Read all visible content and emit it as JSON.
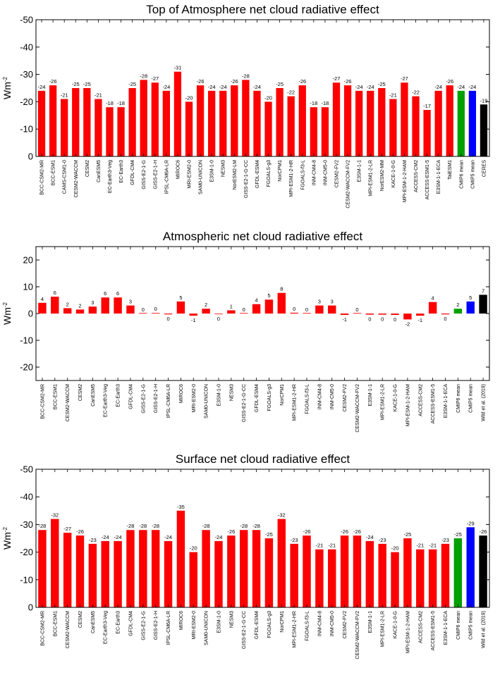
{
  "chart_data": [
    {
      "type": "bar",
      "title": "Top of Atmosphere net cloud radiative effect",
      "ylabel": "Wm",
      "ylabel_sup": "-2",
      "ylim": [
        -50,
        0
      ],
      "yticks": [
        0,
        -10,
        -20,
        -30,
        -40,
        -50
      ],
      "inverted": true,
      "categories": [
        "BCC-CSM2-MR",
        "BCC-ESM1",
        "CAMS-CSM1-0",
        "CESM2-WACCM",
        "CESM2",
        "CanESM5",
        "EC-Earth3-Veg",
        "EC-Earth3",
        "GFDL-CM4",
        "GISS-E2-1-G",
        "GISS-E2-1-H",
        "IPSL-CM6A-LR",
        "MIROC6",
        "MRI-ESM2-0",
        "SAM0-UNICON",
        "E3SM-1-0",
        "NESM3",
        "NorESM2-LM",
        "GISS-E2-1-G-CC",
        "GFDL-ESM4",
        "FGOALS-g3",
        "NorCPM1",
        "MPI-ESM1-2-HR",
        "FGOALS-f3-L",
        "INM-CM4-8",
        "INM-CM5-0",
        "CESM2-FV2",
        "CESM2-WACCM-FV2",
        "E3SM-1-1",
        "MPI-ESM1-2-LR",
        "NorESM2-MM",
        "KACE-1-0-G",
        "MPI-ESM-1-2-HAM",
        "ACCESS-CM2",
        "ACCESS-ESM1-5",
        "E3SM-1-1-ECA",
        "TaiESM1",
        "CMIP6 mean",
        "CMIP5 mean",
        "CERES"
      ],
      "values": [
        -24,
        -26,
        -21,
        -25,
        -25,
        -21,
        -18,
        -18,
        -25,
        -28,
        -27,
        -24,
        -31,
        -20,
        -26,
        -24,
        -24,
        -26,
        -28,
        -24,
        -20,
        -25,
        -22,
        -26,
        -18,
        -18,
        -27,
        -26,
        -24,
        -24,
        -25,
        -21,
        -27,
        -22,
        -17,
        -24,
        -26,
        -24,
        -24,
        -19
      ],
      "labels": [
        "-24",
        "-26",
        "-21",
        "-25",
        "-25",
        "-21",
        "-18",
        "-18",
        "-25",
        "-28",
        "-27",
        "-24",
        "-31",
        "-20",
        "-26",
        "-24",
        "-24",
        "-26",
        "-28",
        "-24",
        "-20",
        "-25",
        "-22",
        "-26",
        "-18",
        "-18",
        "-27",
        "-26",
        "-24",
        "-24",
        "-25",
        "-21",
        "-27",
        "-22",
        "-17",
        "-24",
        "-26",
        "-24",
        "-24",
        "-19"
      ],
      "colors": [
        "#ff0000",
        "#ff0000",
        "#ff0000",
        "#ff0000",
        "#ff0000",
        "#ff0000",
        "#ff0000",
        "#ff0000",
        "#ff0000",
        "#ff0000",
        "#ff0000",
        "#ff0000",
        "#ff0000",
        "#ff0000",
        "#ff0000",
        "#ff0000",
        "#ff0000",
        "#ff0000",
        "#ff0000",
        "#ff0000",
        "#ff0000",
        "#ff0000",
        "#ff0000",
        "#ff0000",
        "#ff0000",
        "#ff0000",
        "#ff0000",
        "#ff0000",
        "#ff0000",
        "#ff0000",
        "#ff0000",
        "#ff0000",
        "#ff0000",
        "#ff0000",
        "#ff0000",
        "#ff0000",
        "#ff0000",
        "#00a000",
        "#0000ff",
        "#000000"
      ]
    },
    {
      "type": "bar",
      "title": "Atmospheric net cloud radiative effect",
      "ylabel": "Wm",
      "ylabel_sup": "-2",
      "ylim": [
        -25,
        25
      ],
      "yticks": [
        20,
        10,
        0,
        -10,
        -20
      ],
      "inverted": false,
      "categories": [
        "BCC-CSM2-MR",
        "BCC-ESM1",
        "CESM2-WACCM",
        "CESM2",
        "CanESM5",
        "EC-Earth3-Veg",
        "EC-Earth3",
        "GFDL-CM4",
        "GISS-E2-1-G",
        "GISS-E2-1-H",
        "IPSL-CM6A-LR",
        "MIROC6",
        "MRI-ESM2-0",
        "SAM0-UNICON",
        "E3SM-1-0",
        "NESM3",
        "GISS-E2-1-G-CC",
        "GFDL-ESM4",
        "FGOALS-g3",
        "NorCPM1",
        "MPI-ESM1-2-HR",
        "FGOALS-f3-L",
        "INM-CM4-8",
        "INM-CM5-0",
        "CESM2-FV2",
        "CESM2-WACCM-FV2",
        "E3SM-1-1",
        "MPI-ESM1-2-LR",
        "KACE-1-0-G",
        "MPI-ESM-1-2-HAM",
        "ACCESS-CM2",
        "ACCESS-ESM1-5",
        "E3SM-1-1-ECA",
        "CMIP6 mean",
        "CMIP5 mean",
        "Wild et al. (2019)"
      ],
      "values": [
        4,
        6.3,
        2,
        1.5,
        2.6,
        6,
        6,
        3,
        0,
        0.2,
        -0.3,
        4.5,
        -0.8,
        1.8,
        -0.2,
        1.2,
        0,
        3.5,
        5.2,
        7.7,
        0.3,
        0,
        3,
        3,
        -0.5,
        0,
        -0.4,
        -0.4,
        -0.5,
        -2.2,
        -0.8,
        4.3,
        -0.3,
        1.8,
        4.5,
        7
      ],
      "labels": [
        "4",
        "6",
        "2",
        "2",
        "3",
        "6",
        "6",
        "3",
        "0",
        "0",
        "0",
        "5",
        "-1",
        "2",
        "0",
        "1",
        "0",
        "4",
        "5",
        "8",
        "0",
        "0",
        "3",
        "3",
        "-1",
        "0",
        "0",
        "0",
        "0",
        "-2",
        "-1",
        "4",
        "0",
        "2",
        "5",
        "7"
      ],
      "colors": [
        "#ff0000",
        "#ff0000",
        "#ff0000",
        "#ff0000",
        "#ff0000",
        "#ff0000",
        "#ff0000",
        "#ff0000",
        "#ff0000",
        "#ff0000",
        "#ff0000",
        "#ff0000",
        "#ff0000",
        "#ff0000",
        "#ff0000",
        "#ff0000",
        "#ff0000",
        "#ff0000",
        "#ff0000",
        "#ff0000",
        "#ff0000",
        "#ff0000",
        "#ff0000",
        "#ff0000",
        "#ff0000",
        "#ff0000",
        "#ff0000",
        "#ff0000",
        "#ff0000",
        "#ff0000",
        "#ff0000",
        "#ff0000",
        "#ff0000",
        "#00a000",
        "#0000ff",
        "#000000"
      ]
    },
    {
      "type": "bar",
      "title": "Surface net cloud radiative effect",
      "ylabel": "Wm",
      "ylabel_sup": "-2",
      "ylim": [
        -50,
        0
      ],
      "yticks": [
        0,
        -10,
        -20,
        -30,
        -40,
        -50
      ],
      "inverted": true,
      "categories": [
        "BCC-CSM2-MR",
        "BCC-ESM1",
        "CESM2-WACCM",
        "CESM2",
        "CanESM5",
        "EC-Earth3-Veg",
        "EC-Earth3",
        "GFDL-CM4",
        "GISS-E2-1-G",
        "GISS-E2-1-H",
        "IPSL-CM6A-LR",
        "MIROC6",
        "MRI-ESM2-0",
        "SAM0-UNICON",
        "E3SM-1-0",
        "NESM3",
        "GISS-E2-1-G-CC",
        "GFDL-ESM4",
        "FGOALS-g3",
        "NorCPM1",
        "MPI-ESM1-2-HR",
        "FGOALS-f3-L",
        "INM-CM4-8",
        "INM-CM5-0",
        "CESM2-FV2",
        "CESM2-WACCM-FV2",
        "E3SM-1-1",
        "MPI-ESM1-2-LR",
        "KACE-1-0-G",
        "MPI-ESM-1-2-HAM",
        "ACCESS-CM2",
        "ACCESS-ESM1-5",
        "E3SM-1-1-ECA",
        "CMIP6 mean",
        "CMIP5 mean",
        "Wild et al. (2019)"
      ],
      "values": [
        -28,
        -32,
        -27,
        -26,
        -23,
        -24,
        -24,
        -28,
        -28,
        -28,
        -24,
        -35,
        -20,
        -28,
        -24,
        -26,
        -28,
        -28,
        -25,
        -32,
        -23,
        -26,
        -21,
        -21,
        -26,
        -26,
        -24,
        -23,
        -20,
        -25,
        -21,
        -21,
        -23,
        -25,
        -29,
        -26
      ],
      "labels": [
        "-28",
        "-32",
        "-27",
        "-26",
        "-23",
        "-24",
        "-24",
        "-28",
        "-28",
        "-28",
        "-24",
        "-35",
        "-20",
        "-28",
        "-24",
        "-26",
        "-28",
        "-28",
        "-25",
        "-32",
        "-23",
        "-26",
        "-21",
        "-21",
        "-26",
        "-26",
        "-24",
        "-23",
        "-20",
        "-25",
        "-21",
        "-21",
        "-23",
        "-25",
        "-29",
        "-26"
      ],
      "colors": [
        "#ff0000",
        "#ff0000",
        "#ff0000",
        "#ff0000",
        "#ff0000",
        "#ff0000",
        "#ff0000",
        "#ff0000",
        "#ff0000",
        "#ff0000",
        "#ff0000",
        "#ff0000",
        "#ff0000",
        "#ff0000",
        "#ff0000",
        "#ff0000",
        "#ff0000",
        "#ff0000",
        "#ff0000",
        "#ff0000",
        "#ff0000",
        "#ff0000",
        "#ff0000",
        "#ff0000",
        "#ff0000",
        "#ff0000",
        "#ff0000",
        "#ff0000",
        "#ff0000",
        "#ff0000",
        "#ff0000",
        "#ff0000",
        "#ff0000",
        "#00a000",
        "#0000ff",
        "#000000"
      ]
    }
  ]
}
